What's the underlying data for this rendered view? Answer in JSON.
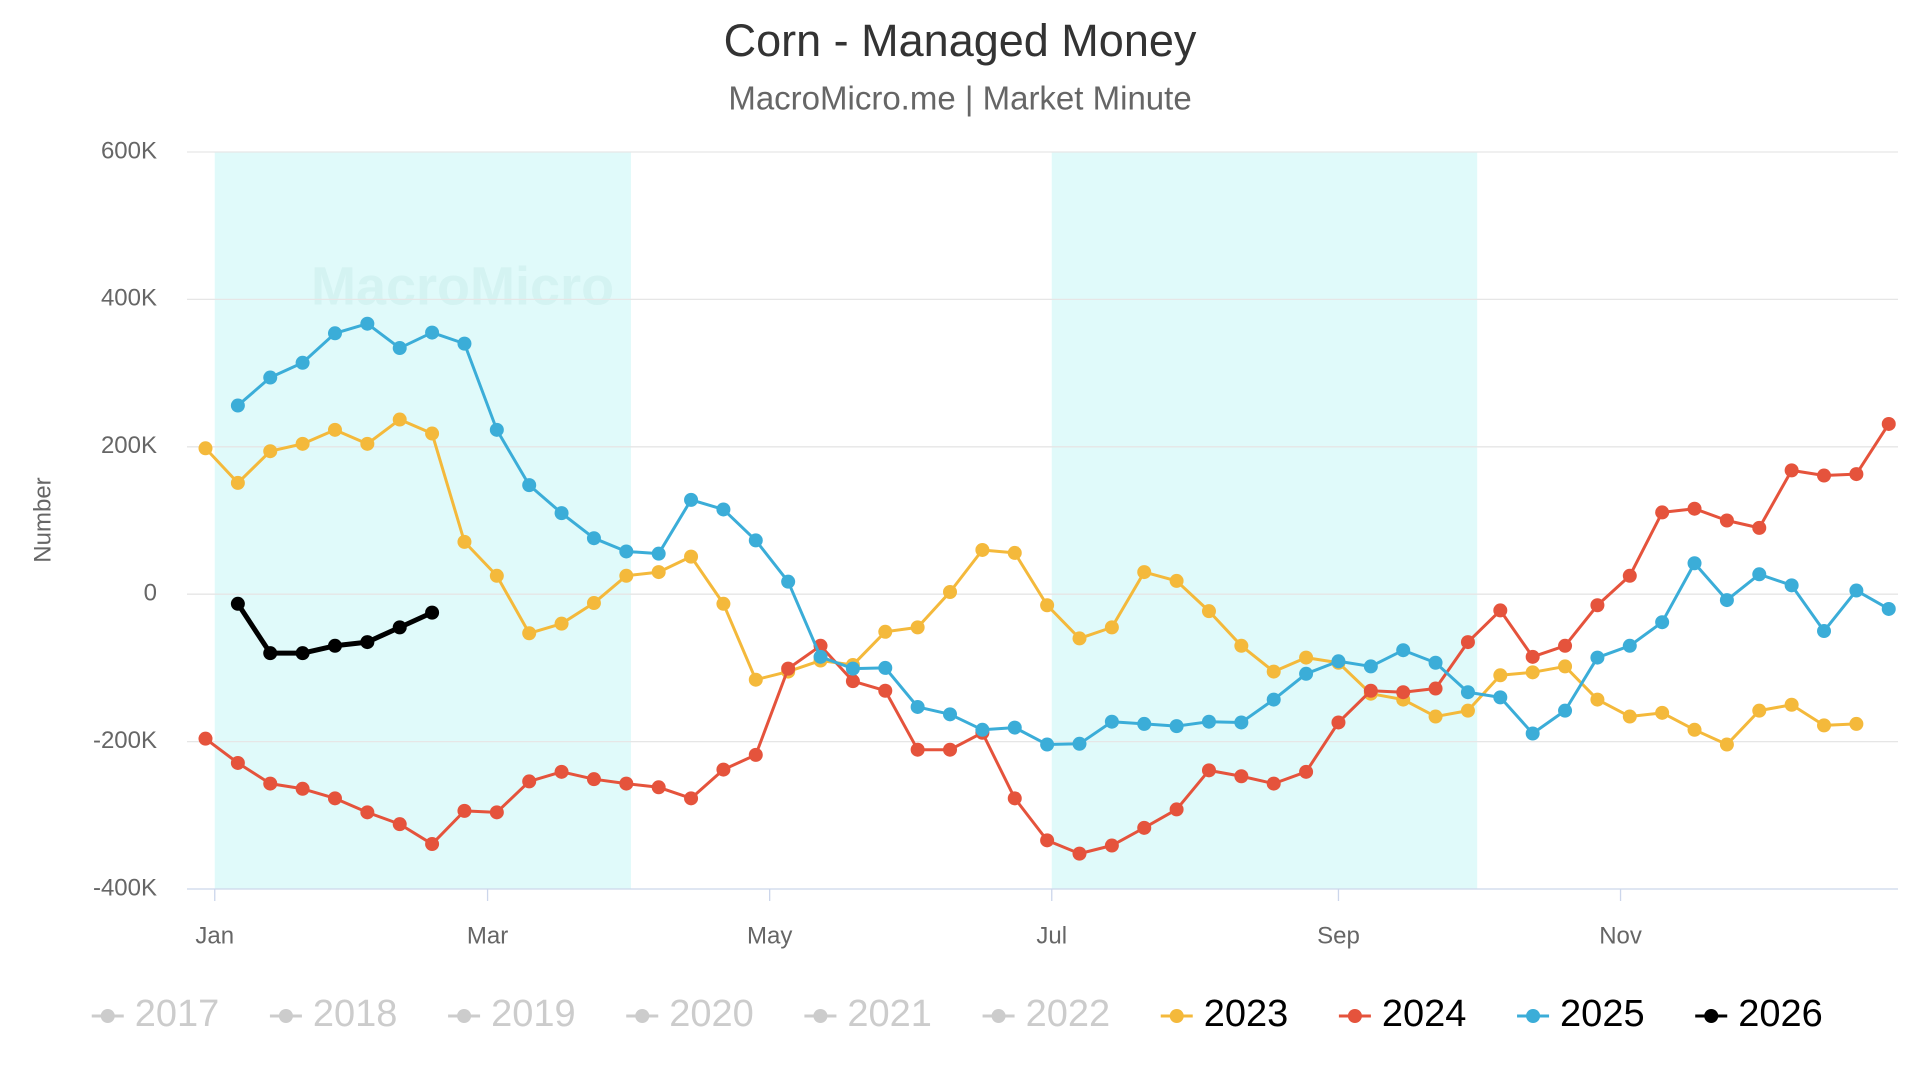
{
  "chart_data": {
    "type": "line",
    "title": "Corn - Managed Money",
    "subtitle": "MacroMicro.me | Market Minute",
    "watermark": "MacroMicro",
    "y_axis_label": "Number",
    "x": [
      -2,
      5,
      12,
      19,
      26,
      33,
      40,
      47,
      54,
      61,
      68,
      75,
      82,
      89,
      96,
      103,
      110,
      117,
      124,
      131,
      138,
      145,
      152,
      159,
      166,
      173,
      180,
      187,
      194,
      201,
      208,
      215,
      222,
      229,
      236,
      243,
      250,
      257,
      264,
      271,
      278,
      285,
      292,
      299,
      306,
      313,
      320,
      327,
      334,
      341,
      348,
      355,
      362
    ],
    "xlim": [
      -6,
      364
    ],
    "xticks": [
      {
        "value": 0,
        "label": "Jan"
      },
      {
        "value": 59,
        "label": "Mar"
      },
      {
        "value": 120,
        "label": "May"
      },
      {
        "value": 181,
        "label": "Jul"
      },
      {
        "value": 243,
        "label": "Sep"
      },
      {
        "value": 304,
        "label": "Nov"
      }
    ],
    "ylim": [
      -400000,
      600000
    ],
    "yticks": [
      {
        "value": -400000,
        "label": "-400K"
      },
      {
        "value": -200000,
        "label": "-200K"
      },
      {
        "value": 0,
        "label": "0"
      },
      {
        "value": 200000,
        "label": "200K"
      },
      {
        "value": 400000,
        "label": "400K"
      },
      {
        "value": 600000,
        "label": "600K"
      }
    ],
    "grid": true,
    "bands": [
      [
        0,
        90
      ],
      [
        181,
        273
      ]
    ],
    "band_color": "#e0fafa",
    "hidden_series": [
      {
        "name": "2017",
        "color": "#cccccc"
      },
      {
        "name": "2018",
        "color": "#cccccc"
      },
      {
        "name": "2019",
        "color": "#cccccc"
      },
      {
        "name": "2020",
        "color": "#cccccc"
      },
      {
        "name": "2021",
        "color": "#cccccc"
      },
      {
        "name": "2022",
        "color": "#cccccc"
      }
    ],
    "series": [
      {
        "name": "2023",
        "color": "#f4b93b",
        "values": [
          198000,
          151000,
          194000,
          204000,
          223000,
          204000,
          237000,
          218000,
          71000,
          25000,
          -53000,
          -40000,
          -12000,
          25000,
          30000,
          51000,
          -13000,
          -116000,
          -105000,
          -90000,
          -96000,
          -51000,
          -45000,
          3000,
          60000,
          56000,
          -15000,
          -60000,
          -45000,
          30000,
          18000,
          -23000,
          -70000,
          -105000,
          -86000,
          -93000,
          -135000,
          -143000,
          -166000,
          -158000,
          -110000,
          -106000,
          -98000,
          -143000,
          -166000,
          -161000,
          -184000,
          -204000,
          -158000,
          -150000,
          -178000,
          -176000,
          null
        ]
      },
      {
        "name": "2024",
        "color": "#e5533c",
        "values": [
          -196000,
          -229000,
          -257000,
          -264000,
          -277000,
          -296000,
          -312000,
          -339000,
          -294000,
          -296000,
          -254000,
          -241000,
          -251000,
          -257000,
          -262000,
          -277000,
          -238000,
          -218000,
          -101000,
          -70000,
          -118000,
          -131000,
          -211000,
          -211000,
          -188000,
          -277000,
          -334000,
          -352000,
          -341000,
          -317000,
          -292000,
          -239000,
          -247000,
          -257000,
          -241000,
          -174000,
          -131000,
          -133000,
          -128000,
          -65000,
          -22000,
          -85000,
          -70000,
          -15000,
          25000,
          111000,
          116000,
          100000,
          90000,
          168000,
          161000,
          163000,
          231000
        ]
      },
      {
        "name": "2025",
        "color": "#3badd8",
        "values": [
          null,
          256000,
          294000,
          314000,
          354000,
          367000,
          334000,
          355000,
          340000,
          223000,
          148000,
          110000,
          76000,
          58000,
          55000,
          128000,
          115000,
          73000,
          17000,
          -85000,
          -101000,
          -100000,
          -153000,
          -163000,
          -184000,
          -181000,
          -204000,
          -203000,
          -173000,
          -176000,
          -179000,
          -173000,
          -174000,
          -143000,
          -108000,
          -91000,
          -98000,
          -76000,
          -93000,
          -133000,
          -140000,
          -189000,
          -158000,
          -86000,
          -70000,
          -38000,
          42000,
          -8000,
          27000,
          12000,
          -50000,
          5000,
          -20000
        ]
      },
      {
        "name": "2026",
        "color": "#000000",
        "values": [
          null,
          -13000,
          -80000,
          -80000,
          -70000,
          -65000,
          -45000,
          -25000,
          null,
          null,
          null,
          null,
          null,
          null,
          null,
          null,
          null,
          null,
          null,
          null,
          null,
          null,
          null,
          null,
          null,
          null,
          null,
          null,
          null,
          null,
          null,
          null,
          null,
          null,
          null,
          null,
          null,
          null,
          null,
          null,
          null,
          null,
          null,
          null,
          null,
          null,
          null,
          null,
          null,
          null,
          null,
          null,
          null
        ]
      }
    ]
  }
}
